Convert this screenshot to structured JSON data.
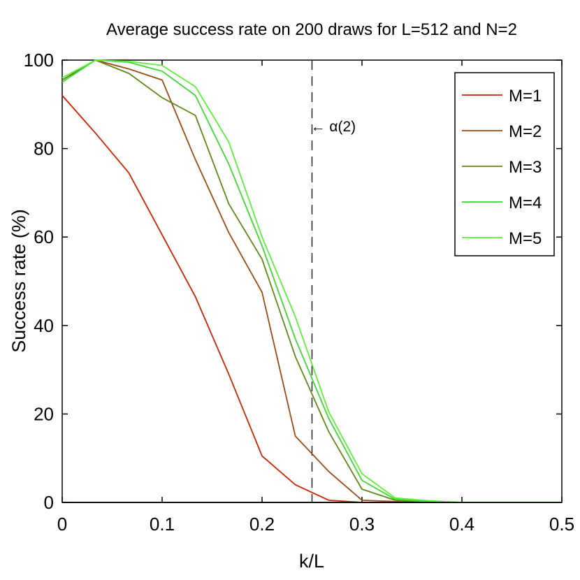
{
  "chart_data": {
    "type": "line",
    "title": "Average success rate on 200 draws for L=512 and N=2",
    "xlabel": "k/L",
    "ylabel": "Success rate (%)",
    "xlim": [
      0,
      0.5
    ],
    "ylim": [
      0,
      100
    ],
    "xticks": [
      0,
      0.1,
      0.2,
      0.3,
      0.4,
      0.5
    ],
    "xtick_labels": [
      "0",
      "0.1",
      "0.2",
      "0.3",
      "0.4",
      "0.5"
    ],
    "yticks": [
      0,
      20,
      40,
      60,
      80,
      100
    ],
    "ytick_labels": [
      "0",
      "20",
      "40",
      "60",
      "80",
      "100"
    ],
    "grid": false,
    "legend_position": "top-right",
    "x": [
      0,
      0.0333,
      0.0667,
      0.1,
      0.1333,
      0.1667,
      0.2,
      0.2333,
      0.2667,
      0.3,
      0.3333,
      0.3667,
      0.4,
      0.4333,
      0.4667,
      0.5
    ],
    "series": [
      {
        "name": "M=1",
        "color": "#cc2200",
        "values": [
          92,
          83.5,
          74.5,
          60.5,
          46.5,
          29,
          10.5,
          4,
          0.5,
          0,
          0,
          0,
          0,
          0,
          0,
          0
        ]
      },
      {
        "name": "M=2",
        "color": "#9a4a12",
        "values": [
          95.5,
          100,
          98,
          95.5,
          77.5,
          61,
          47.5,
          15,
          7,
          0.5,
          0.2,
          0,
          0,
          0,
          0,
          0
        ]
      },
      {
        "name": "M=3",
        "color": "#5e8818",
        "values": [
          95.5,
          100,
          97,
          91.5,
          87.5,
          67.5,
          55,
          33,
          16,
          3,
          0.5,
          0.1,
          0,
          0,
          0,
          0
        ]
      },
      {
        "name": "M=4",
        "color": "#3cd830",
        "values": [
          95,
          100,
          99.5,
          97.5,
          92,
          76.5,
          58,
          37,
          19,
          5,
          0.7,
          0.2,
          0,
          0,
          0,
          0
        ]
      },
      {
        "name": "M=5",
        "color": "#5cf03a",
        "values": [
          96,
          100,
          99.7,
          98.8,
          94,
          81.5,
          60,
          42,
          20.5,
          6.5,
          1,
          0.4,
          0,
          0,
          0,
          0
        ]
      }
    ],
    "vline": {
      "x": 0.25,
      "label": "← α(2)",
      "label_y": 85
    }
  }
}
